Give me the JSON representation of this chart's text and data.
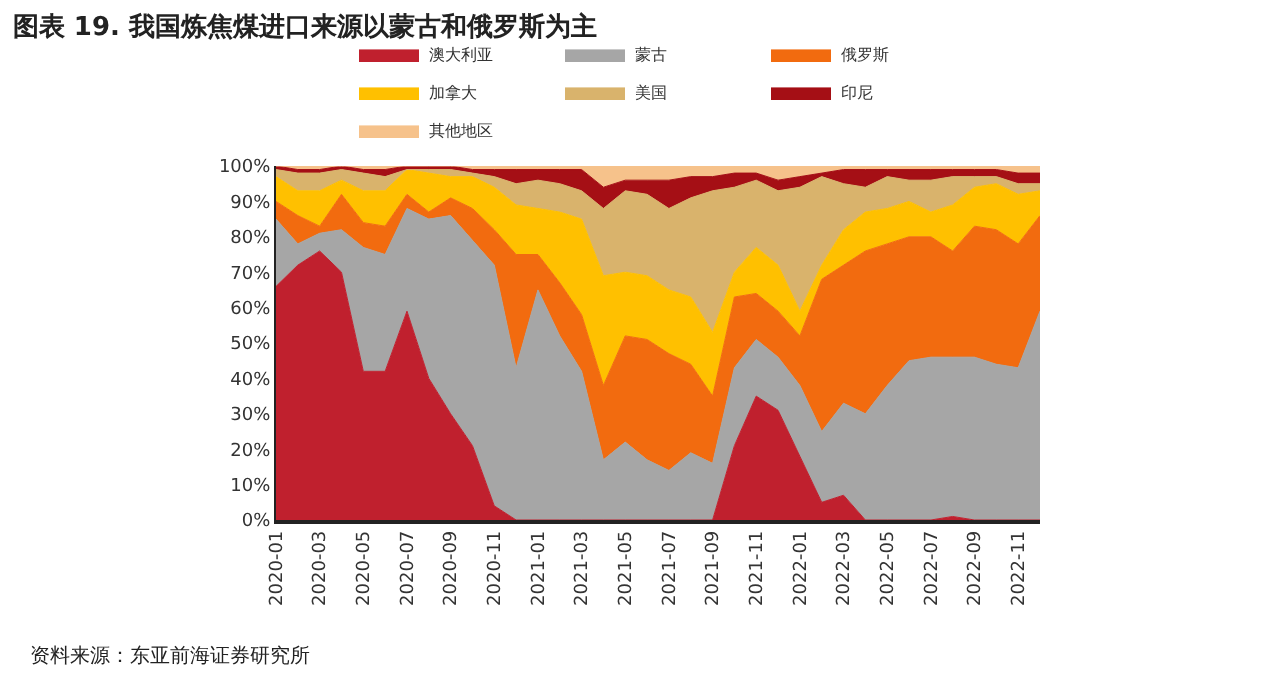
{
  "chart_data": {
    "type": "area",
    "stacked": true,
    "title": "图表 19. 我国炼焦煤进口来源以蒙古和俄罗斯为主",
    "annotations": [
      "资料来源：东亚前海证券研究所"
    ],
    "categories": [
      "2020-01",
      null,
      "2020-03",
      null,
      "2020-05",
      null,
      "2020-07",
      null,
      "2020-09",
      null,
      "2020-11",
      null,
      "2021-01",
      null,
      "2021-03",
      null,
      "2021-05",
      null,
      "2021-07",
      null,
      "2021-09",
      null,
      "2021-11",
      null,
      "2022-01",
      null,
      "2022-03",
      null,
      "2022-05",
      null,
      "2022-07",
      null,
      "2022-09",
      null,
      "2022-11",
      null
    ],
    "series": [
      {
        "name": "澳大利亚",
        "color": "#c0202e",
        "values": [
          66,
          72,
          76,
          70,
          42,
          42,
          59,
          40,
          30,
          21,
          4,
          0,
          0,
          0,
          0,
          0,
          0,
          0,
          0,
          0,
          0,
          21,
          35,
          31,
          18,
          5,
          7,
          0,
          0,
          0,
          0,
          1,
          0,
          0,
          0,
          0
        ]
      },
      {
        "name": "蒙古",
        "color": "#a6a6a6",
        "values": [
          19,
          6,
          5,
          12,
          35,
          33,
          29,
          45,
          56,
          58,
          68,
          43,
          65,
          52,
          42,
          17,
          22,
          17,
          14,
          19,
          16,
          22,
          16,
          15,
          20,
          20,
          26,
          30,
          38,
          45,
          46,
          45,
          46,
          44,
          43,
          59
        ]
      },
      {
        "name": "俄罗斯",
        "color": "#f26b0f",
        "values": [
          5,
          8,
          2,
          10,
          7,
          8,
          4,
          2,
          5,
          9,
          10,
          32,
          10,
          15,
          16,
          21,
          30,
          34,
          33,
          25,
          19,
          20,
          13,
          13,
          14,
          43,
          39,
          46,
          40,
          35,
          34,
          30,
          37,
          38,
          35,
          27
        ]
      },
      {
        "name": "加拿大",
        "color": "#ffc000",
        "values": [
          7,
          7,
          10,
          4,
          9,
          10,
          7,
          11,
          6,
          9,
          12,
          14,
          13,
          20,
          27,
          31,
          18,
          18,
          18,
          19,
          18,
          7,
          13,
          13,
          7,
          4,
          10,
          11,
          10,
          10,
          7,
          13,
          11,
          13,
          14,
          7
        ]
      },
      {
        "name": "美国",
        "color": "#d9b36c",
        "values": [
          2,
          5,
          5,
          3,
          5,
          4,
          0,
          1,
          2,
          1,
          3,
          6,
          8,
          8,
          8,
          19,
          23,
          23,
          23,
          28,
          40,
          24,
          19,
          21,
          35,
          25,
          13,
          7,
          9,
          6,
          9,
          8,
          3,
          2,
          3,
          2
        ]
      },
      {
        "name": "印尼",
        "color": "#a50f15",
        "values": [
          1,
          1,
          1,
          1,
          1,
          2,
          1,
          1,
          1,
          1,
          2,
          4,
          3,
          4,
          6,
          6,
          3,
          4,
          8,
          6,
          4,
          4,
          2,
          3,
          3,
          1,
          4,
          5,
          2,
          3,
          3,
          2,
          2,
          2,
          3,
          3
        ]
      },
      {
        "name": "其他地区",
        "color": "#f6c28b",
        "values": [
          0,
          1,
          1,
          0,
          1,
          1,
          0,
          0,
          0,
          1,
          1,
          1,
          1,
          1,
          1,
          6,
          4,
          4,
          4,
          3,
          3,
          2,
          2,
          4,
          3,
          2,
          1,
          1,
          1,
          1,
          1,
          1,
          1,
          1,
          2,
          2
        ]
      }
    ],
    "ylim": [
      0,
      100
    ],
    "yticks": [
      {
        "value": 0,
        "label": "0%"
      },
      {
        "value": 10,
        "label": "10%"
      },
      {
        "value": 20,
        "label": "20%"
      },
      {
        "value": 30,
        "label": "30%"
      },
      {
        "value": 40,
        "label": "40%"
      },
      {
        "value": 50,
        "label": "50%"
      },
      {
        "value": 60,
        "label": "60%"
      },
      {
        "value": 70,
        "label": "70%"
      },
      {
        "value": 80,
        "label": "80%"
      },
      {
        "value": 90,
        "label": "90%"
      },
      {
        "value": 100,
        "label": "100%"
      }
    ],
    "legend": "top"
  }
}
